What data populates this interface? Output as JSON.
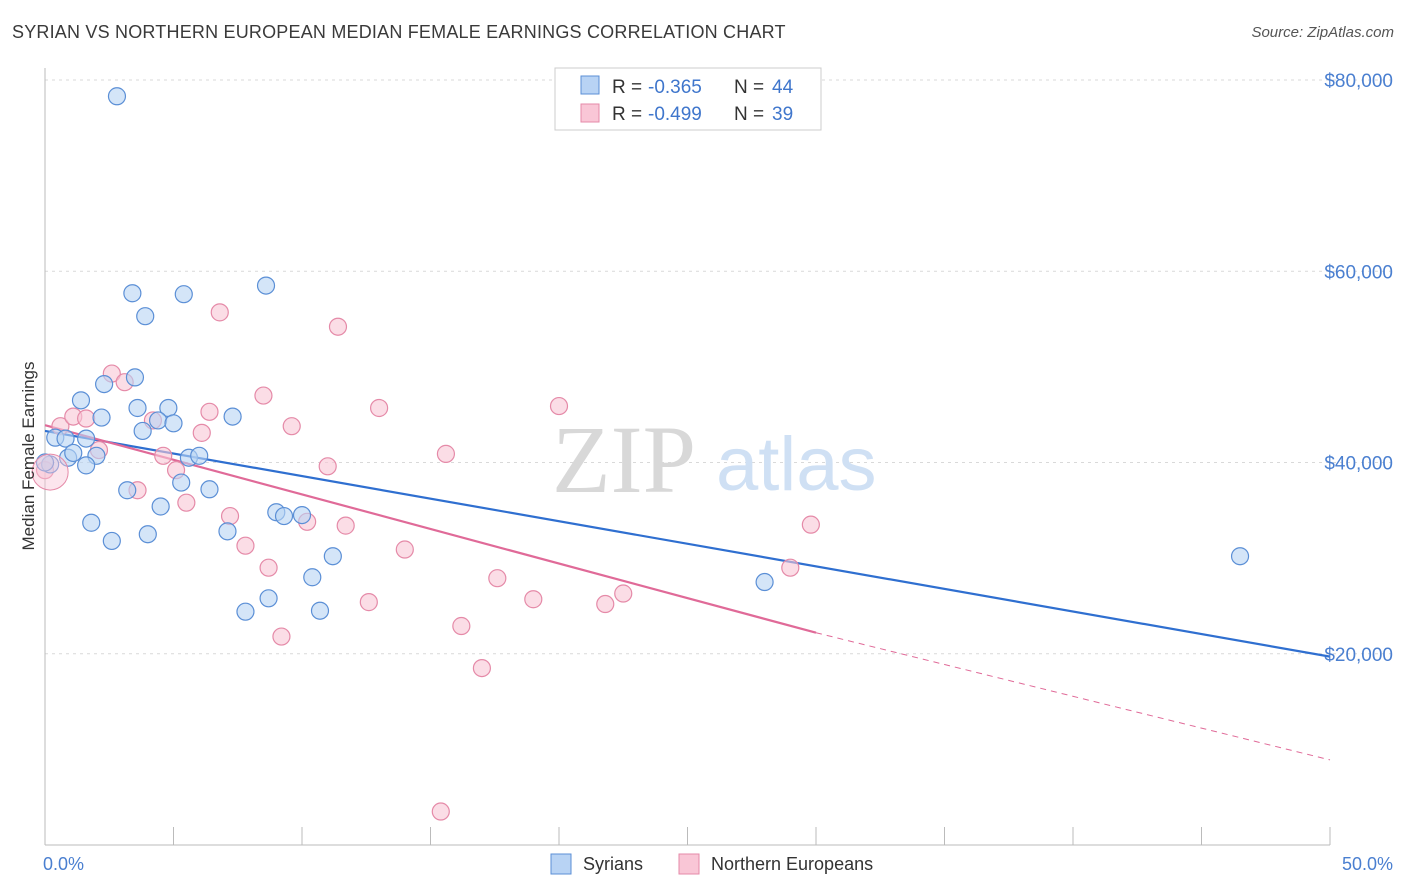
{
  "header": {
    "title": "SYRIAN VS NORTHERN EUROPEAN MEDIAN FEMALE EARNINGS CORRELATION CHART",
    "source": "Source: ZipAtlas.com"
  },
  "watermark": {
    "zip": "ZIP",
    "atlas": "atlas"
  },
  "legend": {
    "r_label": "R =",
    "n_label": "N =",
    "rows": [
      {
        "r": "-0.365",
        "n": "44",
        "fill": "#b8d3f4",
        "stroke": "#5b8fd6"
      },
      {
        "r": "-0.499",
        "n": "39",
        "fill": "#f9c6d6",
        "stroke": "#e58aa8"
      }
    ]
  },
  "bottom_legend": [
    {
      "label": "Syrians",
      "fill": "#b8d3f4",
      "stroke": "#5b8fd6"
    },
    {
      "label": "Northern Europeans",
      "fill": "#f9c6d6",
      "stroke": "#e58aa8"
    }
  ],
  "colors": {
    "syrians_line": "#2f6fd0",
    "northern_line": "#e06a98",
    "syrians_point_fill": "#b8d3f4",
    "syrians_point_stroke": "#5b8fd6",
    "northern_point_fill": "#f9c6d6",
    "northern_point_stroke": "#e58aa8",
    "tick_text": "#4a7fd0",
    "grid": "#d9d9d9"
  },
  "chart_data": {
    "type": "scatter",
    "title": "SYRIAN VS NORTHERN EUROPEAN MEDIAN FEMALE EARNINGS CORRELATION CHART",
    "xlabel": "",
    "ylabel": "Median Female Earnings",
    "xlim": [
      0,
      50
    ],
    "ylim": [
      0,
      80000
    ],
    "x_tick_labels": [
      "0.0%",
      "50.0%"
    ],
    "y_ticks": [
      20000,
      40000,
      60000,
      80000
    ],
    "y_tick_labels": [
      "$20,000",
      "$40,000",
      "$60,000",
      "$80,000"
    ],
    "grid": true,
    "legend_position": "top-center",
    "series": [
      {
        "name": "Syrians",
        "trend": {
          "x": [
            0,
            50
          ],
          "y": [
            43300,
            19700
          ]
        },
        "points": [
          {
            "x": 2.8,
            "y": 78300
          },
          {
            "x": 8.6,
            "y": 58500
          },
          {
            "x": 3.4,
            "y": 57700
          },
          {
            "x": 5.4,
            "y": 57600
          },
          {
            "x": 3.9,
            "y": 55300
          },
          {
            "x": 3.5,
            "y": 48900
          },
          {
            "x": 2.3,
            "y": 48200
          },
          {
            "x": 1.4,
            "y": 46500
          },
          {
            "x": 3.6,
            "y": 45700
          },
          {
            "x": 4.8,
            "y": 45700
          },
          {
            "x": 2.2,
            "y": 44700
          },
          {
            "x": 4.4,
            "y": 44400
          },
          {
            "x": 5.0,
            "y": 44100
          },
          {
            "x": 7.3,
            "y": 44800
          },
          {
            "x": 3.8,
            "y": 43300
          },
          {
            "x": 0.4,
            "y": 42600
          },
          {
            "x": 0.8,
            "y": 42500
          },
          {
            "x": 1.6,
            "y": 42500
          },
          {
            "x": 0.9,
            "y": 40500
          },
          {
            "x": 1.1,
            "y": 41000
          },
          {
            "x": 2.0,
            "y": 40700
          },
          {
            "x": 5.6,
            "y": 40500
          },
          {
            "x": 6.0,
            "y": 40700
          },
          {
            "x": 1.6,
            "y": 39700
          },
          {
            "x": 0.2,
            "y": 39800
          },
          {
            "x": 5.3,
            "y": 37900
          },
          {
            "x": 3.2,
            "y": 37100
          },
          {
            "x": 6.4,
            "y": 37200
          },
          {
            "x": 4.5,
            "y": 35400
          },
          {
            "x": 9.0,
            "y": 34800
          },
          {
            "x": 9.3,
            "y": 34400
          },
          {
            "x": 10.0,
            "y": 34500
          },
          {
            "x": 1.8,
            "y": 33700
          },
          {
            "x": 7.1,
            "y": 32800
          },
          {
            "x": 4.0,
            "y": 32500
          },
          {
            "x": 2.6,
            "y": 31800
          },
          {
            "x": 11.2,
            "y": 30200
          },
          {
            "x": 10.4,
            "y": 28000
          },
          {
            "x": 8.7,
            "y": 25800
          },
          {
            "x": 7.8,
            "y": 24400
          },
          {
            "x": 10.7,
            "y": 24500
          },
          {
            "x": 28.0,
            "y": 27500
          },
          {
            "x": 46.5,
            "y": 30200
          },
          {
            "x": 0.0,
            "y": 40000
          }
        ]
      },
      {
        "name": "Northern Europeans",
        "trend": {
          "x": [
            0,
            30
          ],
          "y": [
            43900,
            22200
          ]
        },
        "trend_dashed": {
          "x": [
            30,
            50
          ],
          "y": [
            22200,
            8900
          ]
        },
        "points": [
          {
            "x": 0.0,
            "y": 39200
          },
          {
            "x": 0.6,
            "y": 43800
          },
          {
            "x": 1.1,
            "y": 44800
          },
          {
            "x": 1.6,
            "y": 44600
          },
          {
            "x": 2.1,
            "y": 41300
          },
          {
            "x": 2.6,
            "y": 49300
          },
          {
            "x": 3.1,
            "y": 48400
          },
          {
            "x": 3.6,
            "y": 37100
          },
          {
            "x": 4.2,
            "y": 44400
          },
          {
            "x": 4.6,
            "y": 40700
          },
          {
            "x": 5.1,
            "y": 39200
          },
          {
            "x": 5.5,
            "y": 35800
          },
          {
            "x": 6.1,
            "y": 43100
          },
          {
            "x": 6.4,
            "y": 45300
          },
          {
            "x": 6.8,
            "y": 55700
          },
          {
            "x": 7.2,
            "y": 34400
          },
          {
            "x": 7.8,
            "y": 31300
          },
          {
            "x": 8.5,
            "y": 47000
          },
          {
            "x": 8.7,
            "y": 29000
          },
          {
            "x": 9.2,
            "y": 21800
          },
          {
            "x": 9.6,
            "y": 43800
          },
          {
            "x": 10.2,
            "y": 33800
          },
          {
            "x": 11.0,
            "y": 39600
          },
          {
            "x": 11.4,
            "y": 54200
          },
          {
            "x": 11.7,
            "y": 33400
          },
          {
            "x": 12.6,
            "y": 25400
          },
          {
            "x": 13.0,
            "y": 45700
          },
          {
            "x": 14.0,
            "y": 30900
          },
          {
            "x": 15.6,
            "y": 40900
          },
          {
            "x": 16.2,
            "y": 22900
          },
          {
            "x": 17.0,
            "y": 18500
          },
          {
            "x": 17.6,
            "y": 27900
          },
          {
            "x": 19.0,
            "y": 25700
          },
          {
            "x": 20.0,
            "y": 45900
          },
          {
            "x": 21.8,
            "y": 25200
          },
          {
            "x": 22.5,
            "y": 26300
          },
          {
            "x": 29.0,
            "y": 29000
          },
          {
            "x": 29.8,
            "y": 33500
          },
          {
            "x": 15.4,
            "y": 3500
          }
        ]
      }
    ]
  }
}
